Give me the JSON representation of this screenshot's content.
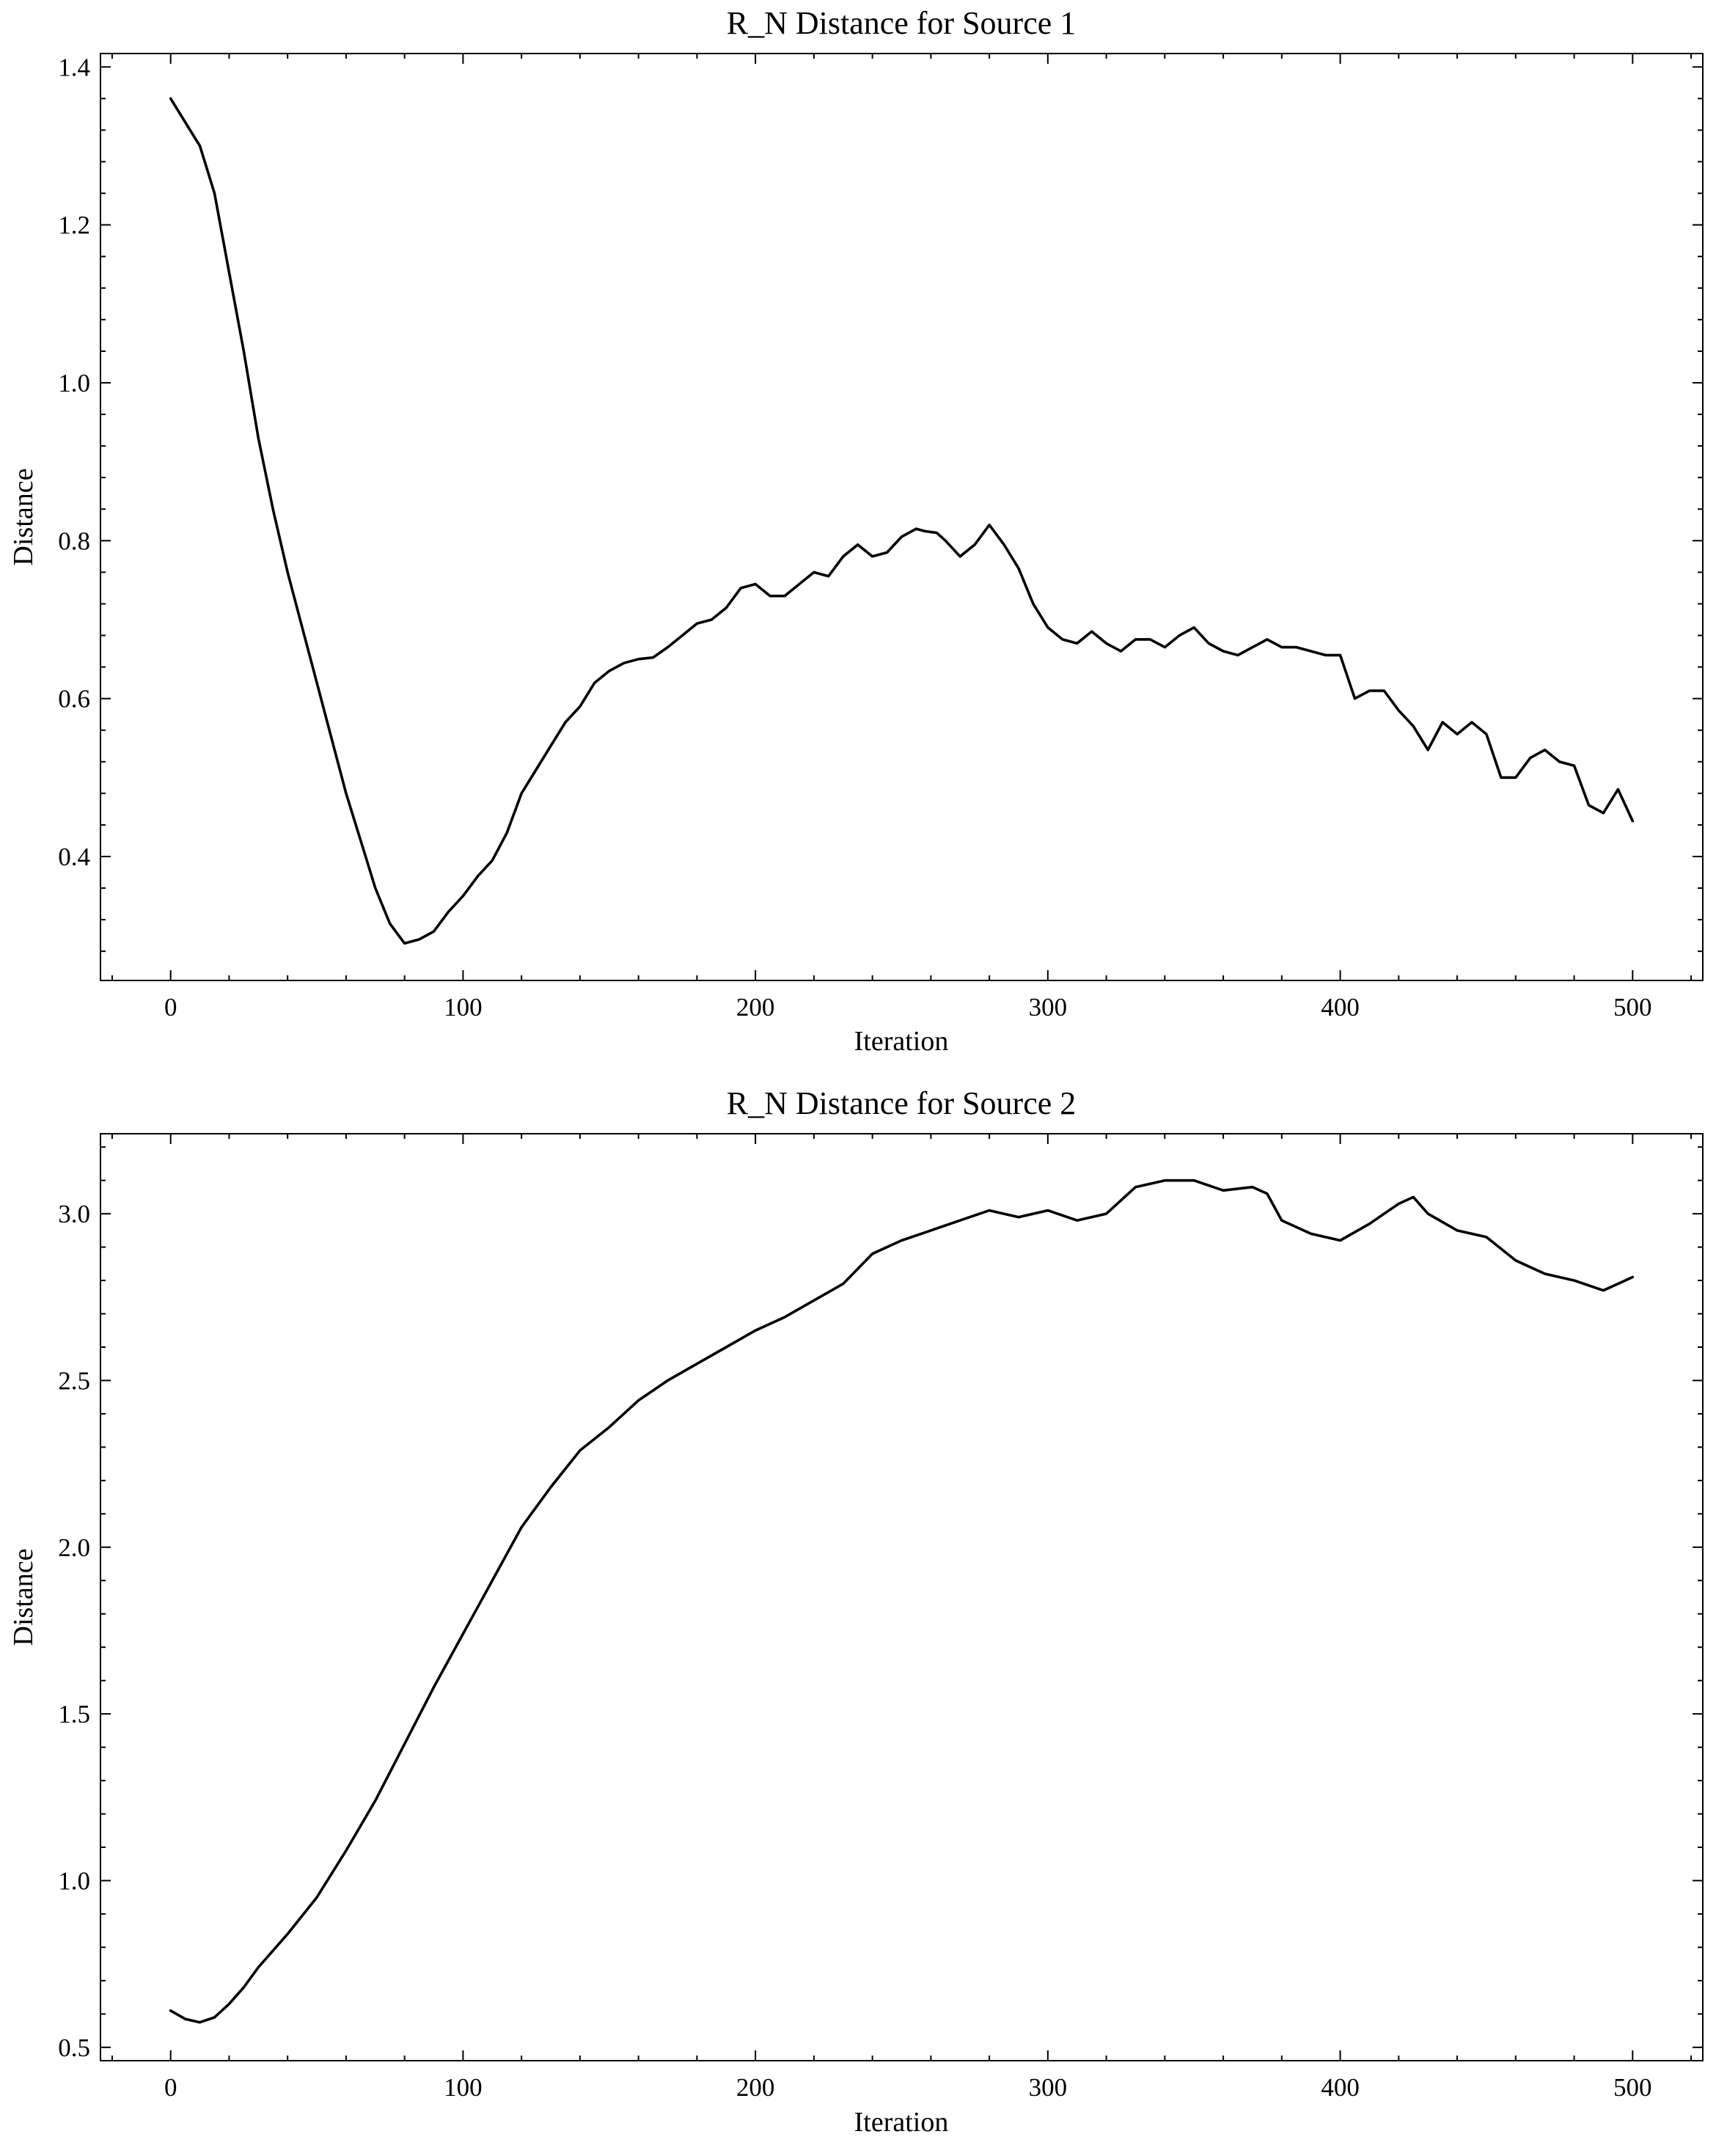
{
  "chart_data": [
    {
      "type": "line",
      "title": "R_N Distance for Source 1",
      "xlabel": "Iteration",
      "ylabel": "Distance",
      "xlim": [
        -24,
        524
      ],
      "ylim": [
        0.243,
        1.417
      ],
      "xticks": [
        0,
        100,
        200,
        300,
        400,
        500
      ],
      "xtick_labels": [
        "0",
        "100",
        "200",
        "300",
        "400",
        "500"
      ],
      "yticks": [
        0.4,
        0.6,
        0.8,
        1.0,
        1.2,
        1.4
      ],
      "ytick_labels": [
        "0.4",
        "0.6",
        "0.8",
        "1.0",
        "1.2",
        "1.4"
      ],
      "grid": false,
      "series": [
        {
          "color": "#000000",
          "x": [
            0,
            5,
            10,
            15,
            20,
            25,
            30,
            35,
            40,
            45,
            50,
            55,
            60,
            65,
            70,
            75,
            80,
            85,
            90,
            95,
            100,
            105,
            110,
            115,
            120,
            125,
            130,
            135,
            140,
            145,
            150,
            155,
            160,
            165,
            170,
            175,
            180,
            185,
            190,
            195,
            200,
            205,
            210,
            215,
            220,
            225,
            230,
            235,
            240,
            245,
            250,
            255,
            258,
            262,
            265,
            270,
            275,
            280,
            285,
            290,
            295,
            300,
            305,
            310,
            315,
            320,
            325,
            330,
            335,
            340,
            345,
            350,
            355,
            360,
            365,
            370,
            375,
            380,
            385,
            390,
            395,
            400,
            405,
            410,
            415,
            420,
            425,
            430,
            435,
            440,
            445,
            450,
            455,
            460,
            465,
            470,
            475,
            480,
            485,
            490,
            495,
            500
          ],
          "y": [
            1.36,
            1.33,
            1.3,
            1.24,
            1.14,
            1.04,
            0.93,
            0.84,
            0.76,
            0.69,
            0.62,
            0.55,
            0.48,
            0.42,
            0.36,
            0.315,
            0.29,
            0.295,
            0.305,
            0.33,
            0.35,
            0.375,
            0.395,
            0.43,
            0.48,
            0.51,
            0.54,
            0.57,
            0.59,
            0.62,
            0.635,
            0.645,
            0.65,
            0.652,
            0.665,
            0.68,
            0.695,
            0.7,
            0.715,
            0.74,
            0.745,
            0.73,
            0.73,
            0.745,
            0.76,
            0.755,
            0.78,
            0.795,
            0.78,
            0.785,
            0.805,
            0.815,
            0.812,
            0.81,
            0.8,
            0.78,
            0.795,
            0.82,
            0.795,
            0.765,
            0.72,
            0.69,
            0.675,
            0.67,
            0.685,
            0.67,
            0.66,
            0.675,
            0.675,
            0.665,
            0.68,
            0.69,
            0.67,
            0.66,
            0.655,
            0.665,
            0.675,
            0.665,
            0.665,
            0.66,
            0.655,
            0.655,
            0.6,
            0.61,
            0.61,
            0.585,
            0.565,
            0.535,
            0.57,
            0.555,
            0.57,
            0.555,
            0.5,
            0.5,
            0.525,
            0.535,
            0.52,
            0.515,
            0.465,
            0.455,
            0.485,
            0.445
          ]
        }
      ]
    },
    {
      "type": "line",
      "title": "R_N Distance for Source 2",
      "xlabel": "Iteration",
      "ylabel": "Distance",
      "xlim": [
        -24,
        524
      ],
      "ylim": [
        0.46,
        3.24
      ],
      "xticks": [
        0,
        100,
        200,
        300,
        400,
        500
      ],
      "xtick_labels": [
        "0",
        "100",
        "200",
        "300",
        "400",
        "500"
      ],
      "yticks": [
        0.5,
        1.0,
        1.5,
        2.0,
        2.5,
        3.0
      ],
      "ytick_labels": [
        "0.5",
        "1.0",
        "1.5",
        "2.0",
        "2.5",
        "3.0"
      ],
      "grid": false,
      "series": [
        {
          "color": "#000000",
          "x": [
            0,
            5,
            10,
            15,
            20,
            25,
            30,
            40,
            50,
            60,
            70,
            80,
            90,
            100,
            110,
            120,
            130,
            140,
            150,
            160,
            170,
            180,
            190,
            200,
            210,
            220,
            230,
            240,
            250,
            260,
            270,
            280,
            290,
            300,
            310,
            320,
            330,
            340,
            350,
            360,
            370,
            375,
            380,
            390,
            400,
            410,
            420,
            425,
            430,
            440,
            450,
            460,
            470,
            480,
            490,
            495,
            500
          ],
          "y": [
            0.61,
            0.585,
            0.575,
            0.59,
            0.63,
            0.68,
            0.74,
            0.84,
            0.95,
            1.09,
            1.24,
            1.41,
            1.58,
            1.74,
            1.9,
            2.06,
            2.18,
            2.29,
            2.36,
            2.44,
            2.5,
            2.55,
            2.6,
            2.65,
            2.69,
            2.74,
            2.79,
            2.88,
            2.92,
            2.95,
            2.98,
            3.01,
            2.99,
            3.01,
            2.98,
            3.0,
            3.08,
            3.1,
            3.1,
            3.07,
            3.08,
            3.06,
            2.98,
            2.94,
            2.92,
            2.97,
            3.03,
            3.05,
            3.0,
            2.95,
            2.93,
            2.86,
            2.82,
            2.8,
            2.77,
            2.79,
            2.81
          ]
        }
      ]
    }
  ]
}
